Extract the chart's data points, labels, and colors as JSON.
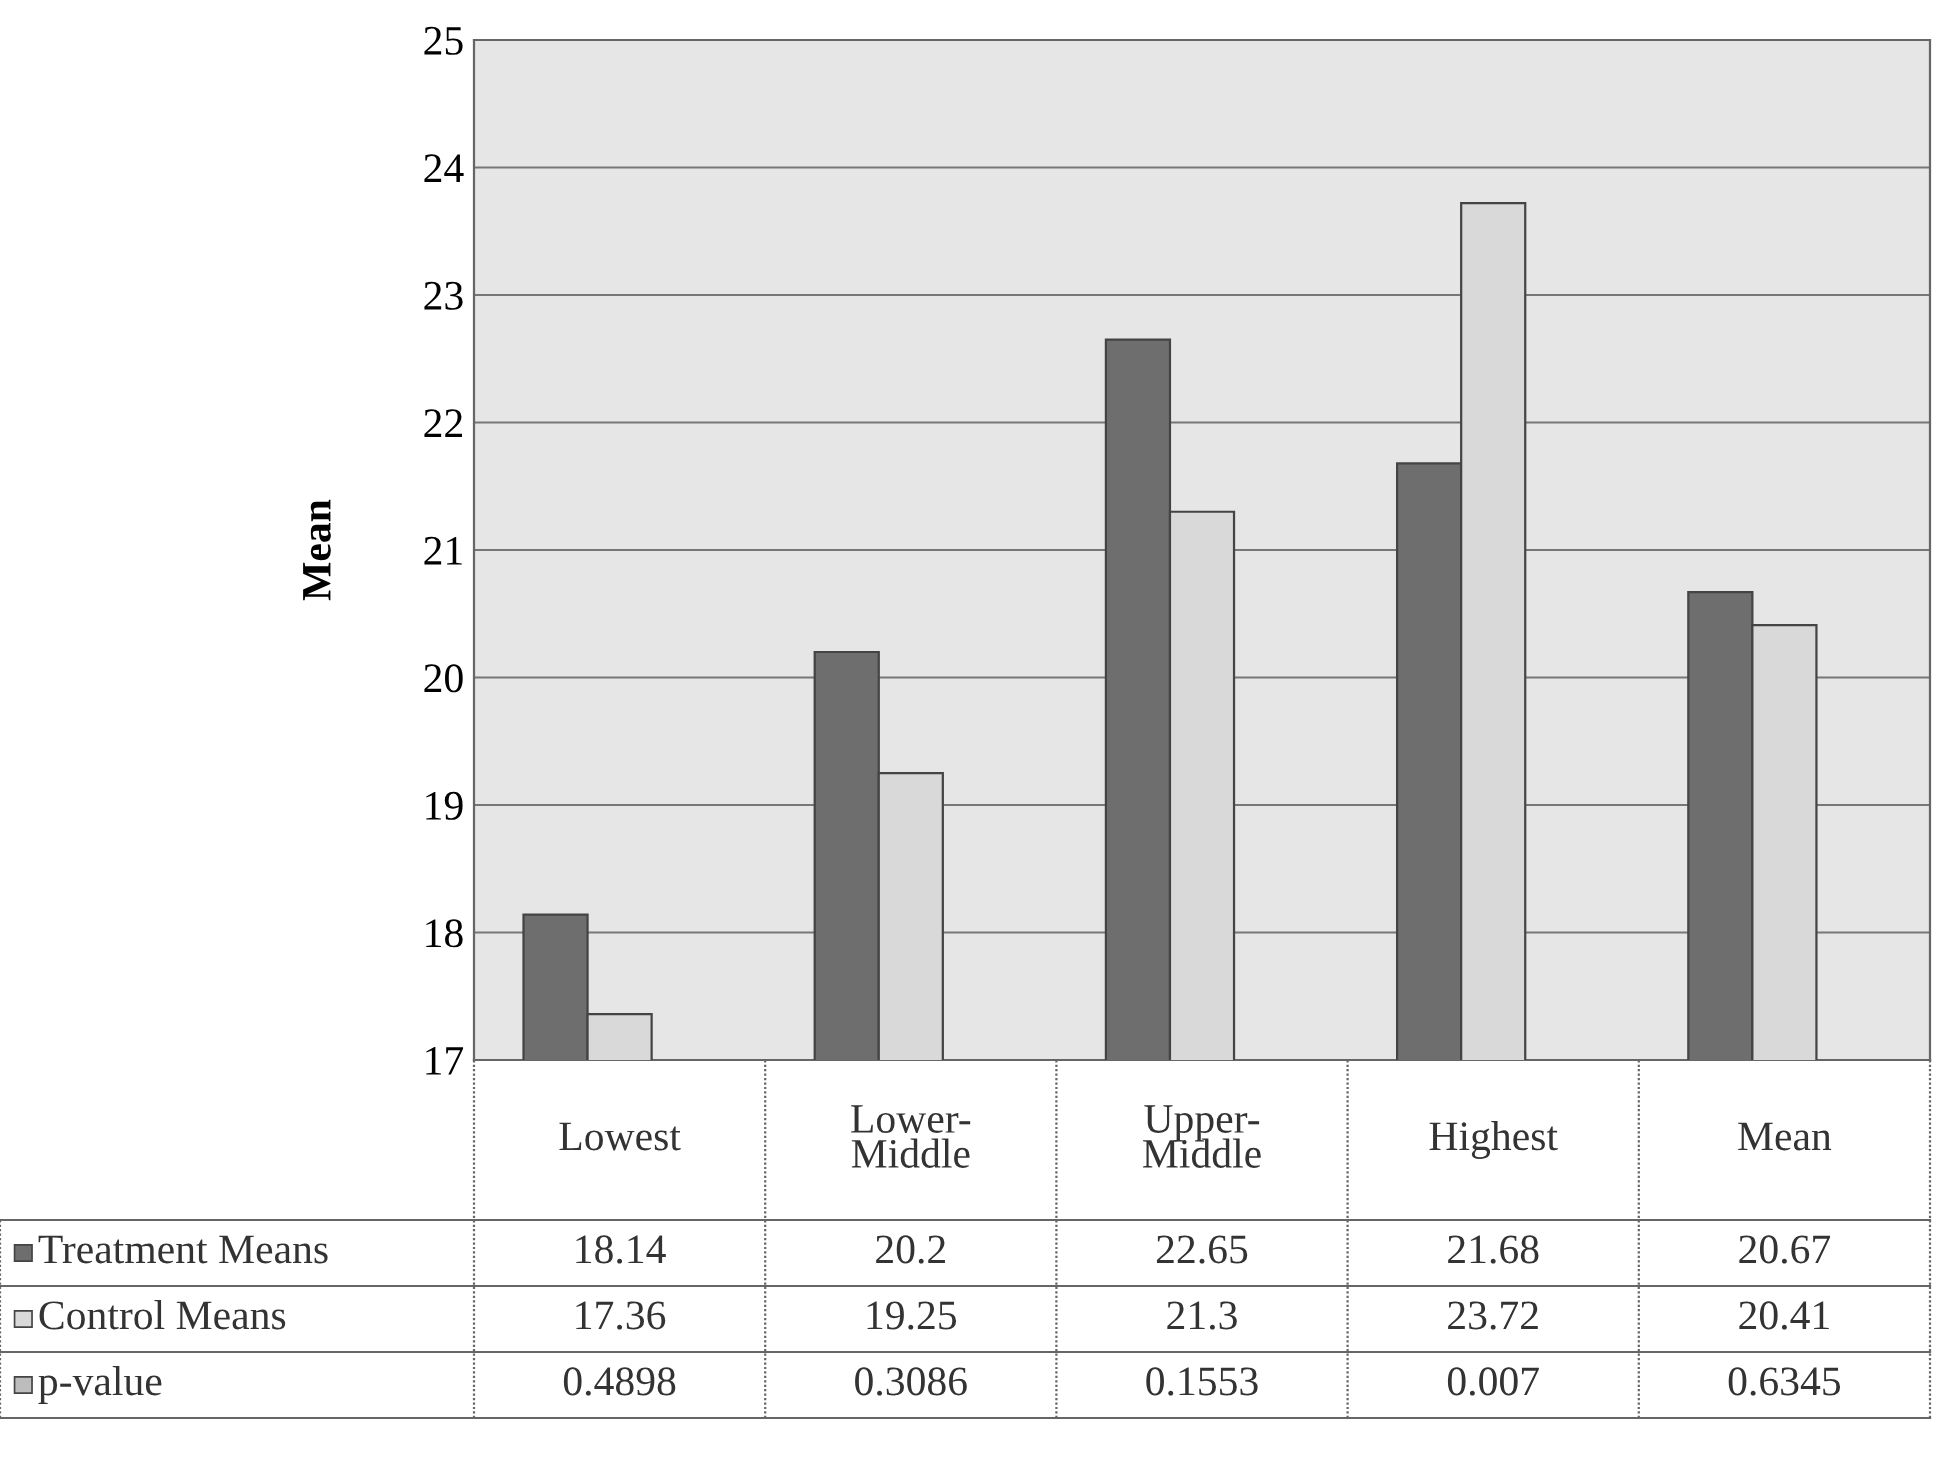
{
  "chart_data": {
    "type": "bar",
    "ylabel": "Mean",
    "categories": [
      "Lowest",
      "Lower-\nMiddle",
      "Upper-\nMiddle",
      "Highest",
      "Mean"
    ],
    "series": [
      {
        "name": "Treatment Means",
        "color": "#6e6e6e",
        "values": [
          18.14,
          20.2,
          22.65,
          21.68,
          20.67
        ]
      },
      {
        "name": "Control Means",
        "color": "#d9d9d9",
        "values": [
          17.36,
          19.25,
          21.3,
          23.72,
          20.41
        ]
      },
      {
        "name": "p-value",
        "color": "#bdbdbd",
        "values": [
          null,
          null,
          null,
          null,
          null
        ],
        "value_labels": [
          "0.4898",
          "0.3086",
          "0.1553",
          "0.007",
          "0.6345"
        ]
      }
    ],
    "ylim": [
      17,
      25
    ],
    "yticks": [
      17,
      18,
      19,
      20,
      21,
      22,
      23,
      24,
      25
    ],
    "grid": "y",
    "data_labels": true,
    "legend": "bottom"
  }
}
